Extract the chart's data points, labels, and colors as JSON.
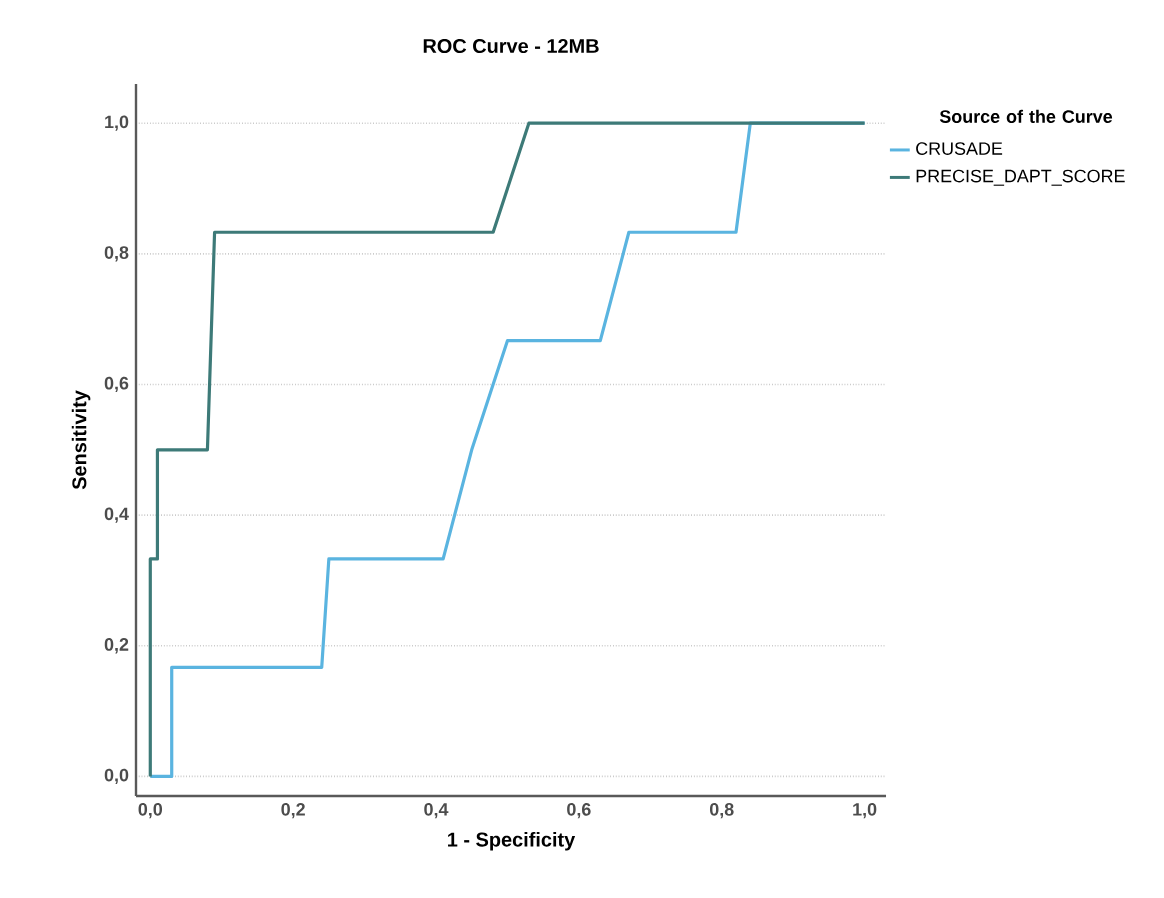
{
  "chart_data": {
    "type": "line",
    "title": "ROC Curve - 12MB",
    "xlabel": "1 - Specificity",
    "ylabel": "Sensitivity",
    "legend_title": "Source of the Curve",
    "xlim": [
      -0.02,
      1.03
    ],
    "ylim": [
      -0.03,
      1.06
    ],
    "xticks": [
      {
        "value": 0,
        "label": "0,0"
      },
      {
        "value": 0.2,
        "label": "0,2"
      },
      {
        "value": 0.4,
        "label": "0,4"
      },
      {
        "value": 0.6,
        "label": "0,6"
      },
      {
        "value": 0.8,
        "label": "0,8"
      },
      {
        "value": 1,
        "label": "1,0"
      }
    ],
    "yticks": [
      {
        "value": 0,
        "label": "0,0"
      },
      {
        "value": 0.2,
        "label": "0,2"
      },
      {
        "value": 0.4,
        "label": "0,4"
      },
      {
        "value": 0.6,
        "label": "0,6"
      },
      {
        "value": 0.8,
        "label": "0,8"
      },
      {
        "value": 1,
        "label": "1,0"
      }
    ],
    "grid": "y",
    "legend": "right",
    "marker": "none",
    "line_style": "solid",
    "series": [
      {
        "name": "CRUSADE",
        "color": "#5ab4e0",
        "x": [
          0,
          0.03,
          0.03,
          0.24,
          0.25,
          0.41,
          0.45,
          0.5,
          0.63,
          0.67,
          0.82,
          0.84,
          1
        ],
        "values": [
          0,
          0,
          0.167,
          0.167,
          0.333,
          0.333,
          0.5,
          0.667,
          0.667,
          0.833,
          0.833,
          1,
          1
        ]
      },
      {
        "name": "PRECISE_DAPT_SCORE",
        "color": "#3d7a78",
        "x": [
          0,
          0,
          0.01,
          0.01,
          0.08,
          0.09,
          0.48,
          0.53,
          1
        ],
        "values": [
          0,
          0.333,
          0.333,
          0.5,
          0.5,
          0.833,
          0.833,
          1,
          1
        ]
      }
    ]
  }
}
